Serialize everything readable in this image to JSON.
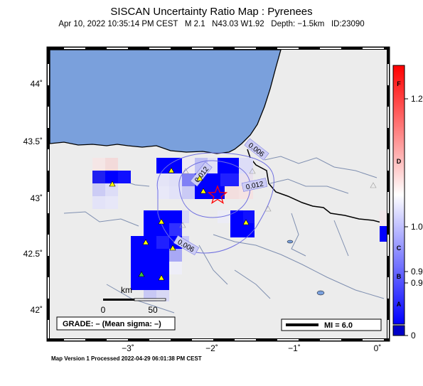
{
  "title": "SISCAN Uncertainty Ratio Map : Pyrenees",
  "subtitle": "Apr 10, 2022 10:35:14 PM CEST   M 2.1   N43.03 W1.92   Depth: −1.5km   ID:23090",
  "footer": "Map Version 1 Processed 2022-04-29 06:01:38 PM CEST",
  "map": {
    "lat_labels": [
      "44˚",
      "43.5˚",
      "43˚",
      "42.5˚",
      "42˚"
    ],
    "lon_labels": [
      "−3˚",
      "−2˚",
      "−1˚",
      "0˚"
    ],
    "contours": [
      "0.006",
      "0.012",
      "0.012",
      "0.006"
    ],
    "scale_label": "km",
    "scale_ticks": [
      "0",
      "50"
    ],
    "grade_text": "GRADE: – (Mean sigma: –)",
    "mi_label": "MI = 6.0",
    "epicenter_icon": "star-icon",
    "station_icon": "triangle-icon"
  },
  "colorbar": {
    "letters": [
      "F",
      "D",
      "C",
      "B",
      "A"
    ],
    "values": [
      "1.2",
      "1.0",
      "0.9",
      "0.9",
      "0"
    ],
    "colors": {
      "high": "#ff0000",
      "mid": "#ffffff",
      "low": "#0000ff"
    }
  },
  "colors": {
    "sea": "#7aa0dc",
    "land": "#ececec",
    "river": "#7f8fb0",
    "contour": "#7070e0",
    "station": "#ffff00",
    "epicenter": "#ff0000"
  }
}
